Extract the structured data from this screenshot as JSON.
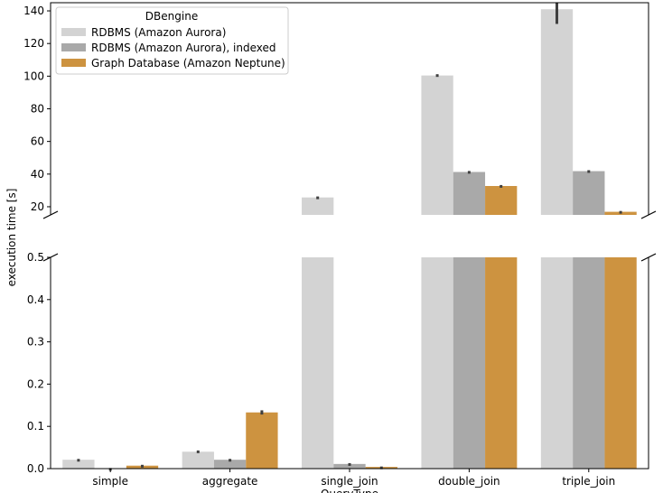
{
  "chart_data": {
    "type": "bar",
    "ylabel": "execution time [s]",
    "xlabel": "QueryType",
    "categories": [
      "simple",
      "aggregate",
      "single_join",
      "double_join",
      "triple_join"
    ],
    "legend": {
      "title": "DBengine",
      "placement": "top-left"
    },
    "series": [
      {
        "name": "RDBMS (Amazon Aurora)",
        "color": "#d3d3d3",
        "values": [
          0.021,
          0.04,
          25.7,
          100.4,
          141.0
        ],
        "err": [
          0.002,
          0.003,
          0.6,
          0.8,
          9.0
        ]
      },
      {
        "name": "RDBMS (Amazon Aurora), indexed",
        "color": "#a9a9a9",
        "values": [
          0.001,
          0.021,
          0.011,
          41.3,
          41.8
        ],
        "err": [
          0.0005,
          0.002,
          0.002,
          0.6,
          0.6
        ]
      },
      {
        "name": "Graph Database (Amazon Neptune)",
        "color": "#cd9340",
        "values": [
          0.007,
          0.133,
          0.004,
          32.7,
          16.9
        ],
        "err": [
          0.002,
          0.005,
          0.001,
          0.6,
          0.5
        ]
      }
    ],
    "axes": {
      "upper": {
        "ylim": [
          15,
          145
        ],
        "ticks": [
          "20",
          "40",
          "60",
          "80",
          "100",
          "120",
          "140"
        ]
      },
      "lower": {
        "ylim": [
          0,
          0.5
        ],
        "ticks": [
          "0.0",
          "0.1",
          "0.2",
          "0.3",
          "0.4",
          "0.5"
        ]
      }
    },
    "grid": false,
    "broken_axis": true
  }
}
